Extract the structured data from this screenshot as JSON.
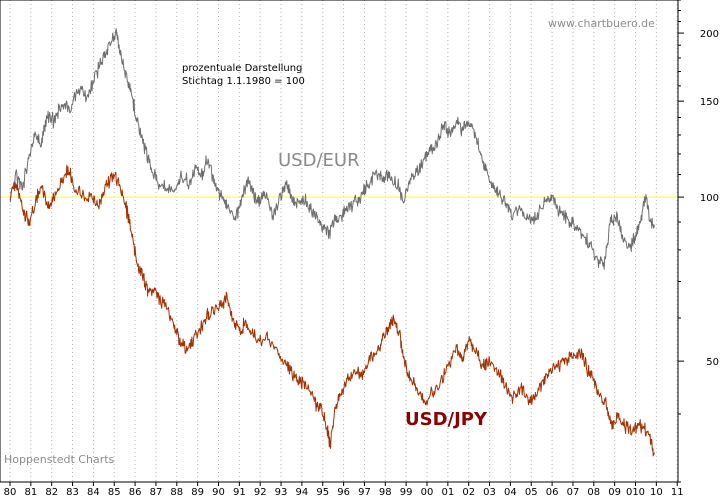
{
  "chart_data": {
    "type": "line",
    "title": "",
    "xlabel": "",
    "ylabel": "",
    "x_tick_labels": [
      "80",
      "81",
      "82",
      "83",
      "84",
      "85",
      "86",
      "87",
      "88",
      "89",
      "90",
      "91",
      "92",
      "93",
      "94",
      "95",
      "96",
      "97",
      "98",
      "99",
      "00",
      "01",
      "02",
      "03",
      "04",
      "05",
      "06",
      "07",
      "08",
      "09",
      "010",
      "10",
      "11"
    ],
    "y_scale": "log",
    "y_ticks": [
      50,
      100,
      150,
      200
    ],
    "ylim": [
      30,
      230
    ],
    "grid": "vertical dotted at each year",
    "reference_line": {
      "value": 100,
      "color": "#ffff66"
    },
    "watermark": "www.chartbuero.de",
    "source": "Hoppenstedt Charts",
    "note_lines": [
      "prozentuale Darstellung",
      "Stichtag 1.1.1980 = 100"
    ],
    "series": [
      {
        "name": "USD/EUR",
        "color": "#6e6e6e",
        "points": [
          [
            1980.0,
            100
          ],
          [
            1980.3,
            110
          ],
          [
            1980.6,
            104
          ],
          [
            1980.9,
            118
          ],
          [
            1981.2,
            132
          ],
          [
            1981.5,
            126
          ],
          [
            1981.8,
            142
          ],
          [
            1982.1,
            138
          ],
          [
            1982.5,
            150
          ],
          [
            1982.9,
            144
          ],
          [
            1983.3,
            158
          ],
          [
            1983.7,
            152
          ],
          [
            1984.1,
            168
          ],
          [
            1984.5,
            180
          ],
          [
            1984.8,
            192
          ],
          [
            1985.1,
            203
          ],
          [
            1985.3,
            182
          ],
          [
            1985.6,
            165
          ],
          [
            1985.9,
            150
          ],
          [
            1986.2,
            132
          ],
          [
            1986.5,
            122
          ],
          [
            1986.8,
            113
          ],
          [
            1987.1,
            106
          ],
          [
            1987.5,
            104
          ],
          [
            1987.9,
            102
          ],
          [
            1988.2,
            110
          ],
          [
            1988.6,
            106
          ],
          [
            1988.9,
            114
          ],
          [
            1989.2,
            110
          ],
          [
            1989.5,
            118
          ],
          [
            1989.8,
            106
          ],
          [
            1990.1,
            101
          ],
          [
            1990.4,
            97
          ],
          [
            1990.8,
            91
          ],
          [
            1991.1,
            98
          ],
          [
            1991.4,
            108
          ],
          [
            1991.7,
            101
          ],
          [
            1992.0,
            98
          ],
          [
            1992.3,
            102
          ],
          [
            1992.6,
            92
          ],
          [
            1992.9,
            99
          ],
          [
            1993.2,
            105
          ],
          [
            1993.5,
            101
          ],
          [
            1993.8,
            97
          ],
          [
            1994.1,
            99
          ],
          [
            1994.4,
            95
          ],
          [
            1994.7,
            91
          ],
          [
            1995.0,
            88
          ],
          [
            1995.3,
            86
          ],
          [
            1995.6,
            91
          ],
          [
            1995.9,
            93
          ],
          [
            1996.2,
            95
          ],
          [
            1996.6,
            98
          ],
          [
            1996.9,
            101
          ],
          [
            1997.2,
            106
          ],
          [
            1997.6,
            111
          ],
          [
            1997.9,
            108
          ],
          [
            1998.2,
            110
          ],
          [
            1998.6,
            105
          ],
          [
            1998.9,
            98
          ],
          [
            1999.2,
            108
          ],
          [
            1999.6,
            113
          ],
          [
            1999.9,
            119
          ],
          [
            2000.2,
            122
          ],
          [
            2000.5,
            126
          ],
          [
            2000.8,
            136
          ],
          [
            2001.1,
            130
          ],
          [
            2001.4,
            137
          ],
          [
            2001.7,
            133
          ],
          [
            2002.0,
            138
          ],
          [
            2002.3,
            132
          ],
          [
            2002.6,
            118
          ],
          [
            2002.9,
            110
          ],
          [
            2003.2,
            104
          ],
          [
            2003.5,
            101
          ],
          [
            2003.8,
            96
          ],
          [
            2004.1,
            92
          ],
          [
            2004.5,
            95
          ],
          [
            2004.9,
            90
          ],
          [
            2005.2,
            92
          ],
          [
            2005.6,
            98
          ],
          [
            2005.9,
            99
          ],
          [
            2006.2,
            96
          ],
          [
            2006.6,
            92
          ],
          [
            2006.9,
            90
          ],
          [
            2007.2,
            88
          ],
          [
            2007.6,
            84
          ],
          [
            2007.9,
            81
          ],
          [
            2008.2,
            76
          ],
          [
            2008.5,
            75
          ],
          [
            2008.8,
            90
          ],
          [
            2009.1,
            92
          ],
          [
            2009.4,
            84
          ],
          [
            2009.7,
            81
          ],
          [
            2010.0,
            84
          ],
          [
            2010.3,
            93
          ],
          [
            2010.5,
            100
          ],
          [
            2010.7,
            91
          ],
          [
            2010.9,
            88
          ]
        ]
      },
      {
        "name": "USD/JPY",
        "color": "#a53000",
        "points": [
          [
            1980.0,
            102
          ],
          [
            1980.3,
            106
          ],
          [
            1980.6,
            95
          ],
          [
            1980.9,
            90
          ],
          [
            1981.2,
            98
          ],
          [
            1981.5,
            105
          ],
          [
            1981.8,
            96
          ],
          [
            1982.1,
            100
          ],
          [
            1982.5,
            108
          ],
          [
            1982.8,
            113
          ],
          [
            1983.1,
            103
          ],
          [
            1983.5,
            101
          ],
          [
            1983.9,
            99
          ],
          [
            1984.2,
            97
          ],
          [
            1984.6,
            104
          ],
          [
            1984.9,
            110
          ],
          [
            1985.2,
            106
          ],
          [
            1985.5,
            98
          ],
          [
            1985.8,
            88
          ],
          [
            1986.1,
            76
          ],
          [
            1986.4,
            71
          ],
          [
            1986.7,
            66
          ],
          [
            1987.0,
            67
          ],
          [
            1987.3,
            64
          ],
          [
            1987.6,
            62
          ],
          [
            1987.9,
            57
          ],
          [
            1988.2,
            54
          ],
          [
            1988.5,
            52
          ],
          [
            1988.8,
            55
          ],
          [
            1989.1,
            57
          ],
          [
            1989.4,
            60
          ],
          [
            1989.7,
            62
          ],
          [
            1990.1,
            64
          ],
          [
            1990.4,
            65
          ],
          [
            1990.7,
            59
          ],
          [
            1991.0,
            57
          ],
          [
            1991.3,
            59
          ],
          [
            1991.6,
            56
          ],
          [
            1992.0,
            54
          ],
          [
            1992.4,
            55
          ],
          [
            1992.8,
            52
          ],
          [
            1993.2,
            50
          ],
          [
            1993.6,
            47
          ],
          [
            1993.9,
            46
          ],
          [
            1994.2,
            45
          ],
          [
            1994.6,
            42
          ],
          [
            1994.9,
            41
          ],
          [
            1995.2,
            38
          ],
          [
            1995.35,
            35
          ],
          [
            1995.6,
            41
          ],
          [
            1995.9,
            44
          ],
          [
            1996.2,
            46
          ],
          [
            1996.6,
            48
          ],
          [
            1996.9,
            47
          ],
          [
            1997.2,
            50
          ],
          [
            1997.6,
            52
          ],
          [
            1997.9,
            55
          ],
          [
            1998.2,
            58
          ],
          [
            1998.4,
            60
          ],
          [
            1998.7,
            56
          ],
          [
            1998.9,
            50
          ],
          [
            1999.2,
            47
          ],
          [
            1999.6,
            44
          ],
          [
            1999.9,
            42
          ],
          [
            2000.3,
            44
          ],
          [
            2000.7,
            46
          ],
          [
            2001.0,
            49
          ],
          [
            2001.4,
            53
          ],
          [
            2001.7,
            50
          ],
          [
            2002.0,
            55
          ],
          [
            2002.3,
            52
          ],
          [
            2002.7,
            49
          ],
          [
            2003.0,
            50
          ],
          [
            2003.4,
            48
          ],
          [
            2003.8,
            45
          ],
          [
            2004.1,
            43
          ],
          [
            2004.5,
            45
          ],
          [
            2004.9,
            42
          ],
          [
            2005.2,
            43
          ],
          [
            2005.6,
            46
          ],
          [
            2005.9,
            48
          ],
          [
            2006.3,
            49
          ],
          [
            2006.7,
            50
          ],
          [
            2007.0,
            51
          ],
          [
            2007.4,
            52
          ],
          [
            2007.7,
            48
          ],
          [
            2008.0,
            46
          ],
          [
            2008.3,
            43
          ],
          [
            2008.6,
            42
          ],
          [
            2008.9,
            38
          ],
          [
            2009.2,
            40
          ],
          [
            2009.5,
            38
          ],
          [
            2009.8,
            37
          ],
          [
            2010.1,
            38
          ],
          [
            2010.4,
            38
          ],
          [
            2010.7,
            36
          ],
          [
            2010.9,
            34
          ]
        ]
      }
    ]
  }
}
